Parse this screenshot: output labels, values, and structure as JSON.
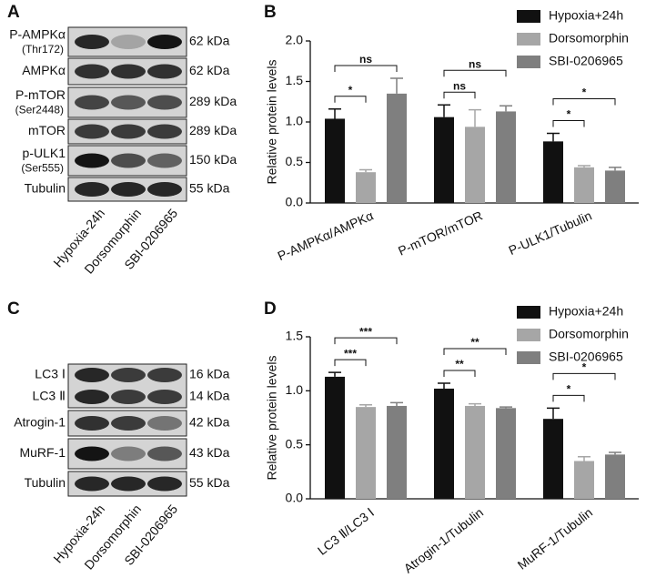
{
  "panel_labels": [
    "A",
    "B",
    "C",
    "D"
  ],
  "blots": [
    {
      "rows": [
        {
          "label": "P-AMPKα",
          "sublabel": "(Thr172)",
          "size": "62 kDa"
        },
        {
          "label": "AMPKα",
          "size": "62 kDa"
        },
        {
          "label": "P-mTOR",
          "sublabel": "(Ser2448)",
          "size": "289 kDa"
        },
        {
          "label": "mTOR",
          "size": "289 kDa"
        },
        {
          "label": "p-ULK1",
          "sublabel": "(Ser555)",
          "size": "150 kDa"
        },
        {
          "label": "Tubulin",
          "size": "55 kDa"
        }
      ],
      "lanes": [
        "Hypoxia-24h",
        "Dorsomorphin",
        "SBI-0206965"
      ]
    },
    {
      "rows": [
        {
          "label": [
            "LC3 Ⅰ",
            "LC3 Ⅱ"
          ],
          "size": [
            "16 kDa",
            "14 kDa"
          ]
        },
        {
          "label": "Atrogin-1",
          "size": "42 kDa"
        },
        {
          "label": "MuRF-1",
          "size": "43 kDa"
        },
        {
          "label": "Tubulin",
          "size": "55 kDa"
        }
      ],
      "lanes": [
        "Hypoxia-24h",
        "Dorsomorphin",
        "SBI-0206965"
      ]
    }
  ],
  "chart_data": [
    {
      "type": "bar",
      "y_label": "Relative protein levels",
      "categories": [
        "P-AMPKα/AMPKα",
        "P-mTOR/mTOR",
        "P-ULK1/Tubulin"
      ],
      "series": [
        {
          "name": "Hypoxia+24h",
          "color": "#111111",
          "values": [
            1.04,
            1.06,
            0.76
          ],
          "errors": [
            0.12,
            0.15,
            0.1
          ]
        },
        {
          "name": "Dorsomorphin",
          "color": "#a6a6a6",
          "values": [
            0.38,
            0.94,
            0.44
          ],
          "errors": [
            0.03,
            0.21,
            0.02
          ]
        },
        {
          "name": "SBI-0206965",
          "color": "#7f7f7f",
          "values": [
            1.35,
            1.13,
            0.4
          ],
          "errors": [
            0.19,
            0.07,
            0.04
          ]
        }
      ],
      "ylim": [
        0,
        2
      ],
      "yticks": [
        {
          "value": 0,
          "label": "0.0"
        },
        {
          "value": 0.5,
          "label": "0.5"
        },
        {
          "value": 1,
          "label": "1.0"
        },
        {
          "value": 1.5,
          "label": "1.5"
        },
        {
          "value": 2,
          "label": "2.0"
        }
      ],
      "legend": "upper right",
      "significance": [
        {
          "category": 0,
          "from": 0,
          "to": 1,
          "label": "*"
        },
        {
          "category": 0,
          "from": 0,
          "to": 2,
          "label": "ns"
        },
        {
          "category": 1,
          "from": 0,
          "to": 1,
          "label": "ns"
        },
        {
          "category": 1,
          "from": 0,
          "to": 2,
          "label": "ns"
        },
        {
          "category": 2,
          "from": 0,
          "to": 1,
          "label": "*"
        },
        {
          "category": 2,
          "from": 0,
          "to": 2,
          "label": "*"
        }
      ]
    },
    {
      "type": "bar",
      "y_label": "Relative protein levels",
      "categories": [
        "LC3 Ⅱ/LC3 Ⅰ",
        "Atrogin-1/Tubulin",
        "MuRF-1/Tubulin"
      ],
      "series": [
        {
          "name": "Hypoxia+24h",
          "color": "#111111",
          "values": [
            1.13,
            1.02,
            0.74
          ],
          "errors": [
            0.04,
            0.05,
            0.1
          ]
        },
        {
          "name": "Dorsomorphin",
          "color": "#a6a6a6",
          "values": [
            0.85,
            0.86,
            0.35
          ],
          "errors": [
            0.02,
            0.02,
            0.04
          ]
        },
        {
          "name": "SBI-0206965",
          "color": "#7f7f7f",
          "values": [
            0.86,
            0.84,
            0.41
          ],
          "errors": [
            0.03,
            0.01,
            0.02
          ]
        }
      ],
      "ylim": [
        0,
        1.5
      ],
      "yticks": [
        {
          "value": 0,
          "label": "0.0"
        },
        {
          "value": 0.5,
          "label": "0.5"
        },
        {
          "value": 1,
          "label": "1.0"
        },
        {
          "value": 1.5,
          "label": "1.5"
        }
      ],
      "legend": "upper right",
      "significance": [
        {
          "category": 0,
          "from": 0,
          "to": 1,
          "label": "***"
        },
        {
          "category": 0,
          "from": 0,
          "to": 2,
          "label": "***"
        },
        {
          "category": 1,
          "from": 0,
          "to": 1,
          "label": "**"
        },
        {
          "category": 1,
          "from": 0,
          "to": 2,
          "label": "**"
        },
        {
          "category": 2,
          "from": 0,
          "to": 1,
          "label": "*"
        },
        {
          "category": 2,
          "from": 0,
          "to": 2,
          "label": "*"
        }
      ]
    }
  ]
}
